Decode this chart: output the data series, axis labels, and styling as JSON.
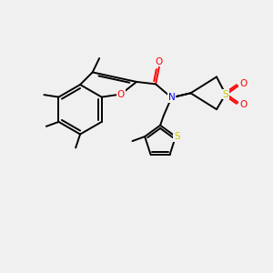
{
  "background_color": "#f0f0f0",
  "bond_color": "#000000",
  "O_color": "#ff0000",
  "N_color": "#0000ff",
  "S_color": "#cccc00",
  "figsize": [
    3.0,
    3.0
  ],
  "dpi": 100,
  "xlim": [
    0,
    12
  ],
  "ylim": [
    0,
    12
  ]
}
